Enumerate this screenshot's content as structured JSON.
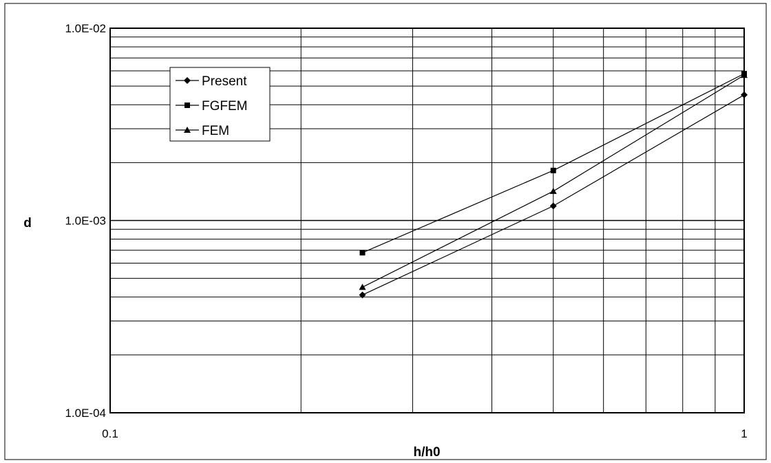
{
  "chart_data": {
    "type": "line",
    "xlabel": "h/h0",
    "ylabel": "d",
    "x_scale": "log",
    "y_scale": "log",
    "xlim": [
      0.1,
      1
    ],
    "ylim": [
      0.0001,
      0.01
    ],
    "x_tick_labels": [
      "0.1",
      "1"
    ],
    "y_tick_labels": [
      "1.0E-04",
      "1.0E-03",
      "1.0E-02"
    ],
    "grid": true,
    "legend_position": "top-left",
    "series": [
      {
        "name": "Present",
        "marker": "diamond",
        "x": [
          0.25,
          0.5,
          1
        ],
        "y": [
          0.00041,
          0.00119,
          0.0045
        ]
      },
      {
        "name": "FGFEM",
        "marker": "square",
        "x": [
          0.25,
          0.5,
          1
        ],
        "y": [
          0.00068,
          0.00182,
          0.0058
        ]
      },
      {
        "name": "FEM",
        "marker": "triangle",
        "x": [
          0.25,
          0.5,
          1
        ],
        "y": [
          0.00045,
          0.00142,
          0.0057
        ]
      }
    ]
  }
}
